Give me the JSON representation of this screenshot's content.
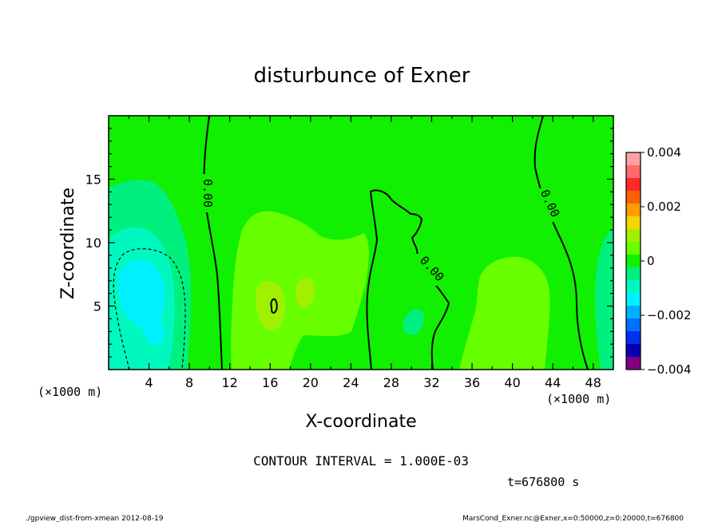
{
  "chart_data": {
    "type": "heatmap",
    "title": "disturbunce of Exner",
    "xlabel": "X-coordinate",
    "ylabel": "Z-coordinate",
    "x_unit_left": "(×1000 m)",
    "x_unit_right": "(×1000 m)",
    "xlim": [
      0,
      50
    ],
    "ylim": [
      0,
      20
    ],
    "x_ticks": [
      "4",
      "8",
      "12",
      "16",
      "20",
      "24",
      "28",
      "32",
      "36",
      "40",
      "44",
      "48"
    ],
    "y_ticks": [
      "5",
      "10",
      "15"
    ],
    "colorbar": {
      "range": [
        -0.004,
        0.004
      ],
      "tick_labels": [
        "0.004",
        "0.002",
        "0",
        "−0.002",
        "−0.004"
      ],
      "levels": [
        {
          "lo": 0.0035,
          "hi": 0.004,
          "color": "#ffa0a8"
        },
        {
          "lo": 0.003,
          "hi": 0.0035,
          "color": "#ff6a6a"
        },
        {
          "lo": 0.0025,
          "hi": 0.003,
          "color": "#ff2a2a"
        },
        {
          "lo": 0.002,
          "hi": 0.0025,
          "color": "#ff6000"
        },
        {
          "lo": 0.0015,
          "hi": 0.002,
          "color": "#ff9c00"
        },
        {
          "lo": 0.001,
          "hi": 0.0015,
          "color": "#f0d800"
        },
        {
          "lo": 0.0005,
          "hi": 0.001,
          "color": "#a0f000"
        },
        {
          "lo": 0.0,
          "hi": 0.0005,
          "color": "#68ff00"
        },
        {
          "lo": -0.0005,
          "hi": 0.0,
          "color": "#10f000"
        },
        {
          "lo": -0.001,
          "hi": -0.0005,
          "color": "#00f080"
        },
        {
          "lo": -0.0015,
          "hi": -0.001,
          "color": "#00f8c0"
        },
        {
          "lo": -0.002,
          "hi": -0.0015,
          "color": "#00f0ff"
        },
        {
          "lo": -0.0025,
          "hi": -0.002,
          "color": "#00b0ff"
        },
        {
          "lo": -0.003,
          "hi": -0.0025,
          "color": "#0070ff"
        },
        {
          "lo": -0.0035,
          "hi": -0.003,
          "color": "#0030f0"
        },
        {
          "lo": -0.004,
          "hi": -0.0035,
          "color": "#0000b0"
        },
        {
          "lo": -0.0045,
          "hi": -0.004,
          "color": "#800080"
        }
      ]
    },
    "contour_labels": [
      "0.00",
      "0.00",
      "0.00"
    ],
    "contour_interval_text": "CONTOUR INTERVAL = 1.000E-03",
    "time_text": "t=676800 s"
  },
  "footer": {
    "left": "./gpview_dist-from-xmean  2012-08-19",
    "right": "MarsCond_Exner.nc@Exner,x=0:50000,z=0:20000,t=676800"
  }
}
